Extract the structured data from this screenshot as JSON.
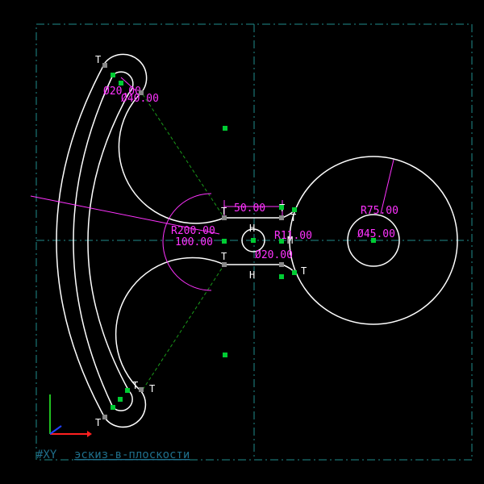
{
  "viewport": {
    "background": "#000000",
    "colors": {
      "geometry": "#ffffff",
      "dimension": "#ff33ff",
      "construction_line": "#1f8b8b",
      "control_point": "#00cc33",
      "dashed_link": "#1a9a1a"
    }
  },
  "dimensions": {
    "dia_top_20": "Ø20.00",
    "dia_top_40": "Ø40.00",
    "dia_bottom_20": "Ø20.00",
    "len_50": "50.00",
    "rad_200": "R200.00",
    "angle_100": "100.00",
    "rad_11": "R11.00",
    "rad_75": "R75.00",
    "dia_45": "Ø45.00"
  },
  "constraints": {
    "tangent": "T",
    "horizontal": "H",
    "midpoint": "M"
  },
  "axes": {
    "icon": "xyz-axis-icon",
    "x_color": "#ff2020",
    "y_color": "#20c020",
    "z_color": "#2040ff"
  },
  "statusbar": {
    "plane": "#XY",
    "mode": "эскиз-в-плоскости"
  }
}
